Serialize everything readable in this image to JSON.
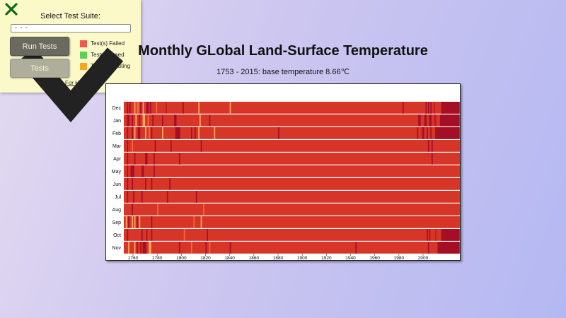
{
  "test_panel": {
    "title": "Select Test Suite:",
    "selected_suite": "- - -",
    "run_button": "Run Tests",
    "tests_button": "Tests",
    "legend": [
      {
        "label": "Test(s) Failed",
        "color": "#f05a4a"
      },
      {
        "label": "Tests Passed",
        "color": "#5ad25a"
      },
      {
        "label": "Tests Executing",
        "color": "#f5a623"
      }
    ],
    "help_link": "Ask For Help"
  },
  "page": {
    "title": "Monthly GLobal Land-Surface Temperature",
    "subtitle": "1753 - 2015: base temperature 8.66℃"
  },
  "chart_data": {
    "type": "heatmap",
    "title": "Monthly GLobal Land-Surface Temperature",
    "subtitle": "1753 - 2015: base temperature 8.66℃",
    "months": [
      "Dec",
      "Jan",
      "Feb",
      "Mar",
      "Apr",
      "May",
      "Jun",
      "Jul",
      "Aug",
      "Sep",
      "Oct",
      "Nov"
    ],
    "x_ticks": [
      1760,
      1780,
      1800,
      1820,
      1840,
      1860,
      1880,
      1900,
      1920,
      1940,
      1960,
      1980,
      2000
    ],
    "x_range": [
      1753,
      2015
    ],
    "base_temperature": 8.66,
    "colors": {
      "base": "#d73527",
      "warm": "#a50f26",
      "hot": "#c01c27",
      "cool": "#f26a3c",
      "cold": "#fdae61"
    },
    "anomalies": [
      {
        "month": 0,
        "years": [
          [
            1755,
            1756,
            "warm"
          ],
          [
            1757,
            1758,
            "warm"
          ],
          [
            1761,
            1762,
            "cold"
          ],
          [
            1763,
            1765,
            "cool"
          ],
          [
            1766,
            1767,
            "warm"
          ],
          [
            1768,
            1769,
            "cold"
          ],
          [
            1771,
            1773,
            "warm"
          ],
          [
            1774,
            1775,
            "warm"
          ],
          [
            1779,
            1780,
            "cool"
          ],
          [
            1787,
            1788,
            "hot"
          ],
          [
            1801,
            1802,
            "warm"
          ],
          [
            1814,
            1815,
            "cold"
          ],
          [
            1840,
            1841,
            "cold"
          ],
          [
            1983,
            1984,
            "warm"
          ],
          [
            2002,
            2003,
            "warm"
          ],
          [
            2004,
            2005,
            "warm"
          ],
          [
            2006,
            2007,
            "warm"
          ],
          [
            2009,
            2010,
            "hot"
          ],
          [
            2015,
            2030,
            "warm"
          ]
        ]
      },
      {
        "month": 1,
        "years": [
          [
            1755,
            1757,
            "warm"
          ],
          [
            1759,
            1760,
            "warm"
          ],
          [
            1762,
            1763,
            "cold"
          ],
          [
            1765,
            1766,
            "warm"
          ],
          [
            1768,
            1770,
            "cold"
          ],
          [
            1772,
            1773,
            "cool"
          ],
          [
            1776,
            1777,
            "warm"
          ],
          [
            1784,
            1785,
            "warm"
          ],
          [
            1794,
            1796,
            "warm"
          ],
          [
            1815,
            1816,
            "cold"
          ],
          [
            1823,
            1824,
            "warm"
          ],
          [
            1996,
            1998,
            "warm"
          ],
          [
            2001,
            2003,
            "warm"
          ],
          [
            2005,
            2007,
            "warm"
          ],
          [
            2009,
            2011,
            "hot"
          ],
          [
            2014,
            2030,
            "warm"
          ]
        ]
      },
      {
        "month": 2,
        "years": [
          [
            1755,
            1756,
            "warm"
          ],
          [
            1759,
            1760,
            "warm"
          ],
          [
            1761,
            1762,
            "cold"
          ],
          [
            1764,
            1766,
            "warm"
          ],
          [
            1770,
            1771,
            "cold"
          ],
          [
            1773,
            1774,
            "cool"
          ],
          [
            1775,
            1776,
            "warm"
          ],
          [
            1784,
            1785,
            "cold"
          ],
          [
            1795,
            1799,
            "warm"
          ],
          [
            1808,
            1809,
            "warm"
          ],
          [
            1811,
            1812,
            "warm"
          ],
          [
            1814,
            1815,
            "cold"
          ],
          [
            1827,
            1828,
            "cold"
          ],
          [
            1880,
            1881,
            "warm"
          ],
          [
            1995,
            1996,
            "warm"
          ],
          [
            1999,
            2001,
            "warm"
          ],
          [
            2003,
            2004,
            "warm"
          ],
          [
            2006,
            2007,
            "warm"
          ],
          [
            2010,
            2030,
            "warm"
          ]
        ]
      },
      {
        "month": 3,
        "years": [
          [
            1755,
            1756,
            "warm"
          ],
          [
            1759,
            1760,
            "cool"
          ],
          [
            1778,
            1779,
            "warm"
          ],
          [
            1791,
            1792,
            "warm"
          ],
          [
            1816,
            1817,
            "warm"
          ],
          [
            2004,
            2005,
            "warm"
          ],
          [
            2007,
            2008,
            "warm"
          ]
        ]
      },
      {
        "month": 4,
        "years": [
          [
            1755,
            1756,
            "warm"
          ],
          [
            1761,
            1762,
            "warm"
          ],
          [
            1770,
            1772,
            "warm"
          ],
          [
            1777,
            1778,
            "warm"
          ],
          [
            1798,
            1799,
            "warm"
          ],
          [
            2007,
            2008,
            "warm"
          ]
        ]
      },
      {
        "month": 5,
        "years": [
          [
            1755,
            1756,
            "warm"
          ],
          [
            1758,
            1760,
            "warm"
          ],
          [
            1760,
            1761,
            "warm"
          ],
          [
            1767,
            1768,
            "warm"
          ],
          [
            1768,
            1769,
            "warm"
          ],
          [
            1777,
            1778,
            "warm"
          ]
        ]
      },
      {
        "month": 6,
        "years": [
          [
            1755,
            1756,
            "warm"
          ],
          [
            1759,
            1760,
            "warm"
          ],
          [
            1770,
            1771,
            "warm"
          ],
          [
            1775,
            1776,
            "warm"
          ],
          [
            1790,
            1791,
            "warm"
          ]
        ]
      },
      {
        "month": 7,
        "years": [
          [
            1755,
            1756,
            "warm"
          ],
          [
            1760,
            1761,
            "warm"
          ],
          [
            1767,
            1768,
            "warm"
          ],
          [
            1788,
            1789,
            "warm"
          ],
          [
            1812,
            1813,
            "warm"
          ]
        ]
      },
      {
        "month": 8,
        "years": [
          [
            1759,
            1760,
            "warm"
          ],
          [
            1780,
            1781,
            "cool"
          ],
          [
            1818,
            1819,
            "cool"
          ]
        ]
      },
      {
        "month": 9,
        "years": [
          [
            1754,
            1755,
            "cold"
          ],
          [
            1756,
            1757,
            "warm"
          ],
          [
            1759,
            1760,
            "cold"
          ],
          [
            1761,
            1762,
            "cold"
          ],
          [
            1763,
            1764,
            "warm"
          ],
          [
            1765,
            1766,
            "cold"
          ],
          [
            1775,
            1776,
            "warm"
          ],
          [
            1810,
            1811,
            "cool"
          ],
          [
            1816,
            1817,
            "cold"
          ]
        ]
      },
      {
        "month": 10,
        "years": [
          [
            1755,
            1756,
            "warm"
          ],
          [
            1767,
            1768,
            "warm"
          ],
          [
            1771,
            1772,
            "warm"
          ],
          [
            1775,
            1776,
            "warm"
          ],
          [
            1802,
            1803,
            "cool"
          ],
          [
            1821,
            1822,
            "warm"
          ],
          [
            2003,
            2004,
            "warm"
          ],
          [
            2005,
            2006,
            "warm"
          ],
          [
            2010,
            2011,
            "hot"
          ],
          [
            2015,
            2030,
            "warm"
          ]
        ]
      },
      {
        "month": 11,
        "years": [
          [
            1756,
            1757,
            "cold"
          ],
          [
            1761,
            1762,
            "cold"
          ],
          [
            1763,
            1764,
            "warm"
          ],
          [
            1766,
            1767,
            "warm"
          ],
          [
            1768,
            1771,
            "warm"
          ],
          [
            1773,
            1775,
            "cold"
          ],
          [
            1798,
            1799,
            "warm"
          ],
          [
            1808,
            1809,
            "cool"
          ],
          [
            1820,
            1821,
            "warm"
          ],
          [
            1823,
            1824,
            "cool"
          ],
          [
            1840,
            1841,
            "warm"
          ],
          [
            1944,
            1945,
            "warm"
          ],
          [
            2004,
            2005,
            "warm"
          ],
          [
            2012,
            2030,
            "warm"
          ]
        ]
      }
    ]
  }
}
